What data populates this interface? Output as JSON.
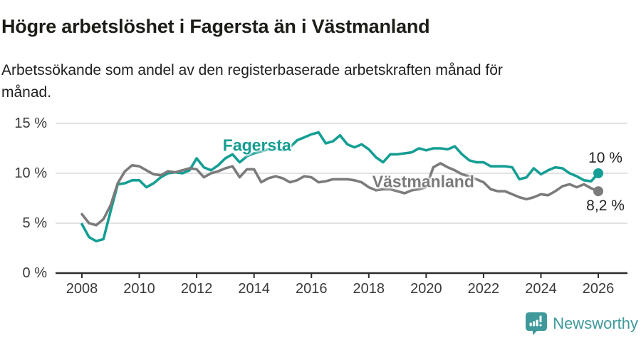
{
  "header": {
    "title": "Högre arbetslöshet i Fagersta än i Västmanland",
    "subtitle": "Arbetssökande som andel av den registerbaserade arbetskraften månad för månad.",
    "subtitle_lines": [
      "Arbetssökande som andel av den registerbaserade arbetskraften månad för",
      "månad."
    ]
  },
  "footer": {
    "brand": "Newsworthy"
  },
  "colors": {
    "fagersta": "#149e94",
    "vastmanland": "#7b7b7b",
    "grid": "#d8d8d8",
    "axis": "#2d2d2d",
    "tick_text": "#3a3a3a",
    "end_label_text": "#222222",
    "brand": "#3f999b"
  },
  "chart_data": {
    "type": "line",
    "title": "Högre arbetslöshet i Fagersta än i Västmanland",
    "subtitle": "Arbetssökande som andel av den registerbaserade arbetskraften månad för månad.",
    "xlabel": "",
    "ylabel": "",
    "ylim": [
      0,
      15
    ],
    "xlim": [
      2007.1,
      2027.0
    ],
    "grid": "horizontal",
    "unit": "%",
    "yticks": [
      {
        "value": 0,
        "label": "0 %"
      },
      {
        "value": 5,
        "label": "5 %"
      },
      {
        "value": 10,
        "label": "10 %"
      },
      {
        "value": 15,
        "label": "15 %"
      }
    ],
    "xticks": [
      {
        "value": 2008,
        "label": "2008"
      },
      {
        "value": 2010,
        "label": "2010"
      },
      {
        "value": 2012,
        "label": "2012"
      },
      {
        "value": 2014,
        "label": "2014"
      },
      {
        "value": 2016,
        "label": "2016"
      },
      {
        "value": 2018,
        "label": "2018"
      },
      {
        "value": 2020,
        "label": "2020"
      },
      {
        "value": 2022,
        "label": "2022"
      },
      {
        "value": 2024,
        "label": "2024"
      },
      {
        "value": 2026,
        "label": "2026"
      }
    ],
    "x": [
      2008,
      2008.25,
      2008.5,
      2008.75,
      2009,
      2009.25,
      2009.5,
      2009.75,
      2010,
      2010.25,
      2010.5,
      2010.75,
      2011,
      2011.25,
      2011.5,
      2011.75,
      2012,
      2012.25,
      2012.5,
      2012.75,
      2013,
      2013.25,
      2013.5,
      2013.75,
      2014,
      2014.25,
      2014.5,
      2014.75,
      2015,
      2015.25,
      2015.5,
      2015.75,
      2016,
      2016.25,
      2016.5,
      2016.75,
      2017,
      2017.25,
      2017.5,
      2017.75,
      2018,
      2018.25,
      2018.5,
      2018.75,
      2019,
      2019.25,
      2019.5,
      2019.75,
      2020,
      2020.25,
      2020.5,
      2020.75,
      2021,
      2021.25,
      2021.5,
      2021.75,
      2022,
      2022.25,
      2022.5,
      2022.75,
      2023,
      2023.25,
      2023.5,
      2023.75,
      2024,
      2024.25,
      2024.5,
      2024.75,
      2025,
      2025.25,
      2025.5,
      2025.75,
      2026
    ],
    "series": [
      {
        "name": "Fagersta",
        "color": "#149e94",
        "end_label": "10 %",
        "end_label_side": "above",
        "end_dot": true,
        "label_anchor": {
          "x": 2014.1,
          "y": 12.78
        },
        "values": [
          4.9,
          3.6,
          3.2,
          3.4,
          6.2,
          8.9,
          9.0,
          9.3,
          9.3,
          8.6,
          9.0,
          9.6,
          10.0,
          10.1,
          10.0,
          10.3,
          11.5,
          10.6,
          10.3,
          10.8,
          11.5,
          11.9,
          11.1,
          11.7,
          12.0,
          12.2,
          12.4,
          12.5,
          12.3,
          12.6,
          13.3,
          13.6,
          13.9,
          14.1,
          13.0,
          13.2,
          13.8,
          12.9,
          12.6,
          12.9,
          12.4,
          11.6,
          11.1,
          11.9,
          11.9,
          12.0,
          12.1,
          12.5,
          12.3,
          12.5,
          12.5,
          12.4,
          12.7,
          11.9,
          11.3,
          11.1,
          11.1,
          10.7,
          10.7,
          10.7,
          10.6,
          9.4,
          9.6,
          10.5,
          9.9,
          10.3,
          10.6,
          10.5,
          10.0,
          9.7,
          9.3,
          9.2,
          10.0
        ]
      },
      {
        "name": "Västmanland",
        "color": "#7b7b7b",
        "end_label": "8,2 %",
        "end_label_side": "below",
        "end_dot": true,
        "label_anchor": {
          "x": 2019.9,
          "y": 9.15
        },
        "values": [
          5.9,
          5.0,
          4.8,
          5.4,
          6.8,
          9.0,
          10.2,
          10.8,
          10.7,
          10.3,
          9.9,
          9.8,
          10.2,
          10.1,
          10.3,
          10.5,
          10.4,
          9.6,
          10.0,
          10.2,
          10.5,
          10.7,
          9.6,
          10.4,
          10.4,
          9.1,
          9.5,
          9.7,
          9.5,
          9.1,
          9.3,
          9.7,
          9.6,
          9.1,
          9.2,
          9.4,
          9.4,
          9.4,
          9.3,
          9.1,
          8.6,
          8.3,
          8.4,
          8.4,
          8.2,
          8.0,
          8.3,
          8.4,
          8.6,
          10.6,
          11.0,
          10.6,
          10.3,
          9.9,
          9.7,
          9.4,
          9.1,
          8.4,
          8.2,
          8.2,
          7.9,
          7.6,
          7.4,
          7.6,
          7.9,
          7.8,
          8.2,
          8.7,
          8.9,
          8.6,
          8.9,
          8.5,
          8.2
        ]
      }
    ]
  }
}
